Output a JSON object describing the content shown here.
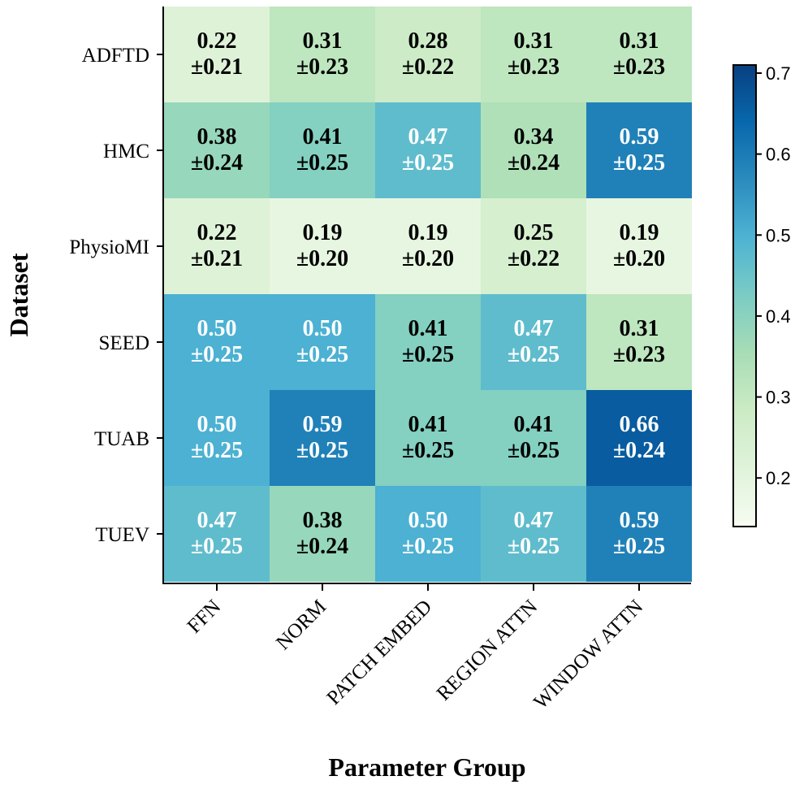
{
  "chart_data": {
    "type": "heatmap",
    "xlabel": "Parameter Group",
    "ylabel": "Dataset",
    "x_categories": [
      "FFN",
      "NORM",
      "PATCH EMBED",
      "REGION ATTN",
      "WINDOW ATTN"
    ],
    "y_categories": [
      "ADFTD",
      "HMC",
      "PhysioMI",
      "SEED",
      "TUAB",
      "TUEV"
    ],
    "values": [
      [
        0.22,
        0.31,
        0.28,
        0.31,
        0.31
      ],
      [
        0.38,
        0.41,
        0.47,
        0.34,
        0.59
      ],
      [
        0.22,
        0.19,
        0.19,
        0.25,
        0.19
      ],
      [
        0.5,
        0.5,
        0.41,
        0.47,
        0.31
      ],
      [
        0.5,
        0.59,
        0.41,
        0.41,
        0.66
      ],
      [
        0.47,
        0.38,
        0.5,
        0.47,
        0.59
      ]
    ],
    "value_labels": [
      [
        "0.22",
        "0.31",
        "0.28",
        "0.31",
        "0.31"
      ],
      [
        "0.38",
        "0.41",
        "0.47",
        "0.34",
        "0.59"
      ],
      [
        "0.22",
        "0.19",
        "0.19",
        "0.25",
        "0.19"
      ],
      [
        "0.50",
        "0.50",
        "0.41",
        "0.47",
        "0.31"
      ],
      [
        "0.50",
        "0.59",
        "0.41",
        "0.41",
        "0.66"
      ],
      [
        "0.47",
        "0.38",
        "0.50",
        "0.47",
        "0.59"
      ]
    ],
    "std_labels": [
      [
        "±0.21",
        "±0.23",
        "±0.22",
        "±0.23",
        "±0.23"
      ],
      [
        "±0.24",
        "±0.25",
        "±0.25",
        "±0.24",
        "±0.25"
      ],
      [
        "±0.21",
        "±0.20",
        "±0.20",
        "±0.22",
        "±0.20"
      ],
      [
        "±0.25",
        "±0.25",
        "±0.25",
        "±0.25",
        "±0.23"
      ],
      [
        "±0.25",
        "±0.25",
        "±0.25",
        "±0.25",
        "±0.24"
      ],
      [
        "±0.25",
        "±0.24",
        "±0.25",
        "±0.25",
        "±0.25"
      ]
    ],
    "colormap": "GnBu",
    "colorbar": {
      "range": [
        0.14,
        0.71
      ],
      "ticks": [
        0.2,
        0.3,
        0.4,
        0.5,
        0.6,
        0.7
      ],
      "tick_labels": [
        "0.2",
        "0.3",
        "0.4",
        "0.5",
        "0.6",
        "0.7"
      ]
    },
    "text_color_threshold": 0.45,
    "colors": {
      "dark_text": "#000000",
      "light_text": "#ffffff",
      "gnbu_stops": [
        "#f7fcf0",
        "#e0f3db",
        "#ccebc5",
        "#a8ddb5",
        "#7bccc4",
        "#4eb3d3",
        "#2b8cbe",
        "#0868ac",
        "#084081"
      ]
    }
  }
}
